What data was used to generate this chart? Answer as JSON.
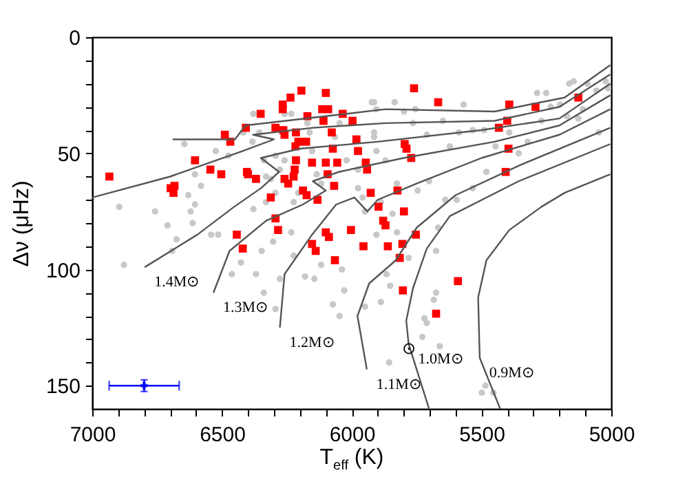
{
  "chart_data": {
    "type": "scatter",
    "xlabel": "T$_{eff}$ (K)",
    "ylabel": "Δν (μHz)",
    "xlim": [
      7000,
      5000
    ],
    "ylim": [
      160,
      0
    ],
    "xticks": [
      7000,
      {
        "value": 6900,
        "label": null
      },
      {
        "value": 6800,
        "label": null
      },
      {
        "value": 6700,
        "label": null
      },
      {
        "value": 6600,
        "label": null
      },
      6500,
      {
        "value": 6400,
        "label": null
      },
      {
        "value": 6300,
        "label": null
      },
      {
        "value": 6200,
        "label": null
      },
      {
        "value": 6100,
        "label": null
      },
      6000,
      {
        "value": 5900,
        "label": null
      },
      {
        "value": 5800,
        "label": null
      },
      {
        "value": 5700,
        "label": null
      },
      {
        "value": 5600,
        "label": null
      },
      5500,
      {
        "value": 5400,
        "label": null
      },
      {
        "value": 5300,
        "label": null
      },
      {
        "value": 5200,
        "label": null
      },
      {
        "value": 5100,
        "label": null
      },
      5000
    ],
    "yticks": [
      0,
      {
        "value": 10,
        "label": null
      },
      {
        "value": 20,
        "label": null
      },
      {
        "value": 30,
        "label": null
      },
      {
        "value": 40,
        "label": null
      },
      50,
      {
        "value": 60,
        "label": null
      },
      {
        "value": 70,
        "label": null
      },
      {
        "value": 80,
        "label": null
      },
      {
        "value": 90,
        "label": null
      },
      100,
      {
        "value": 110,
        "label": null
      },
      {
        "value": 120,
        "label": null
      },
      {
        "value": 130,
        "label": null
      },
      {
        "value": 140,
        "label": null
      },
      150
    ],
    "series": [
      {
        "type": "scatter",
        "color": "#c8c8c8",
        "marker": "circle",
        "x": [
          6896,
          6758,
          6645,
          6604,
          6581,
          6630,
          6604,
          6524,
          6475,
          6418,
          6383,
          6379,
          6356,
          6339,
          6330,
          6312,
          6294,
          6379,
          6330,
          6259,
          6233,
          6171,
          6162,
          6153,
          6135,
          6118,
          6065,
          6047,
          6020,
          5976,
          5923,
          5905,
          5914,
          5958,
          5976,
          5888,
          6224,
          6206,
          6259,
          6294,
          6277,
          5914,
          5835,
          5799,
          5755,
          5649,
          5587,
          5534,
          5490,
          5393,
          5322,
          5357,
          5481,
          5534,
          5596,
          5640,
          5702,
          5746,
          5826,
          5870,
          5905,
          5286,
          5251,
          5233,
          5198,
          5162,
          5145,
          5092,
          5057,
          5021,
          5012,
          5048,
          5110,
          5127,
          5171,
          5269,
          5569,
          5711,
          5622,
          5446,
          5764,
          5914,
          6878,
          6710,
          6675,
          6692,
          6613,
          6621,
          6542,
          6515,
          6427,
          6462,
          6369,
          6339,
          6294,
          6277,
          6224,
          6180,
          6144,
          6118,
          6038,
          6029,
          6073,
          6047,
          6303,
          6233,
          6347,
          5949,
          5843,
          5905,
          5826,
          5667,
          5675,
          5781,
          5866,
          5852,
          5888,
          5949,
          5675,
          5684,
          5720,
          5711,
          5728,
          5661,
          5856,
          5499,
          5485,
          5454
        ],
        "values": [
          73,
          75,
          46,
          59,
          64,
          68,
          72,
          49,
          51,
          41,
          45,
          33,
          41,
          53,
          60,
          61,
          67,
          74,
          71,
          33,
          33,
          37,
          41,
          49,
          59,
          63,
          43,
          37,
          53,
          57,
          28,
          31,
          43,
          69,
          65,
          71,
          71,
          67,
          53,
          51,
          57,
          28,
          28,
          32,
          31,
          36,
          41,
          40,
          40,
          41,
          45,
          50,
          58,
          65,
          70,
          70,
          62,
          66,
          63,
          53,
          49,
          24,
          24,
          30,
          29,
          20,
          19,
          20,
          23,
          19,
          22,
          41,
          31,
          35,
          34,
          36,
          29,
          42,
          47,
          47,
          37,
          41,
          98,
          81,
          87,
          92,
          80,
          75,
          85,
          85,
          97,
          102,
          102,
          110,
          117,
          104,
          94,
          103,
          104,
          98,
          100,
          109,
          115,
          120,
          88,
          84,
          92,
          75,
          76,
          85,
          84,
          82,
          92,
          95,
          102,
          107,
          114,
          116,
          110,
          113,
          121,
          123,
          129,
          133,
          140,
          153,
          150,
          153
        ]
      },
      {
        "type": "scatter",
        "color": "#ff0000",
        "marker": "square",
        "x": [
          6934,
          6698,
          6683,
          6687,
          6604,
          6545,
          6503,
          6489,
          6468,
          6408,
          6404,
          6400,
          6369,
          6351,
          6312,
          6294,
          6264,
          6259,
          6266,
          6266,
          6236,
          6224,
          6220,
          6215,
          6217,
          6206,
          6215,
          6259,
          6245,
          6194,
          6188,
          6174,
          6176,
          6171,
          6132,
          6153,
          6114,
          6091,
          6109,
          6100,
          6100,
          6093,
          6077,
          6073,
          6068,
          6056,
          6035,
          5997,
          5982,
          5976,
          5946,
          5941,
          5927,
          5897,
          5760,
          5667,
          5393,
          5292,
          5127,
          5401,
          5433,
          5796,
          5789,
          5771,
          5396,
          5407,
          5824,
          5799,
          6443,
          6420,
          6294,
          6284,
          6153,
          6139,
          6100,
          6088,
          6065,
          6003,
          5955,
          5879,
          5870,
          5753,
          5861,
          5805,
          5815,
          5803,
          5591,
          5675
        ],
        "values": [
          60,
          65,
          64,
          67,
          53,
          57,
          59,
          42,
          45,
          39,
          58,
          59,
          61,
          33,
          69,
          39,
          40,
          42,
          31,
          29,
          26,
          60,
          57,
          41,
          47,
          45,
          53,
          61,
          63,
          23,
          66,
          68,
          45,
          34,
          70,
          54,
          31,
          31,
          36,
          24,
          54,
          59,
          41,
          48,
          64,
          54,
          33,
          36,
          44,
          49,
          54,
          57,
          67,
          73,
          22,
          28,
          29,
          30,
          26,
          36,
          39,
          46,
          48,
          52,
          48,
          58,
          66,
          75,
          85,
          91,
          78,
          83,
          89,
          92,
          84,
          86,
          96,
          83,
          90,
          79,
          81,
          85,
          90,
          89,
          95,
          109,
          105,
          119
        ]
      },
      {
        "type": "line",
        "color": "#555555",
        "x": [
          6690,
          6450,
          6410,
          6100,
          5870,
          5450,
          5180,
          5004
        ],
        "values": [
          44,
          44,
          38,
          34,
          31,
          32,
          26,
          12
        ]
      },
      {
        "type": "line",
        "color": "#555555",
        "x": [
          7000,
          6700,
          6420,
          6300,
          6380,
          6150,
          5870,
          5450,
          5200,
          5004
        ],
        "values": [
          69,
          60,
          49,
          44,
          42,
          39,
          37,
          36,
          30,
          16
        ]
      },
      {
        "type": "line",
        "color": "#555555",
        "name": "1.4M⊙",
        "x": [
          6798,
          6595,
          6453,
          6350,
          6280,
          6350,
          6200,
          5900,
          5500,
          5200,
          5004
        ],
        "values": [
          99,
          85,
          73,
          65,
          58,
          52,
          48,
          45,
          40,
          35,
          20
        ]
      },
      {
        "type": "line",
        "color": "#555555",
        "name": "1.3M⊙",
        "x": [
          6533,
          6471,
          6330,
          6188,
          6100,
          6150,
          6050,
          5800,
          5450,
          5200,
          5004
        ],
        "values": [
          110,
          92,
          79,
          72,
          66,
          62,
          58,
          52,
          45,
          38,
          25
        ]
      },
      {
        "type": "line",
        "color": "#555555",
        "name": "1.2M⊙",
        "x": [
          6277,
          6259,
          6153,
          6060,
          5990,
          5940,
          5900,
          5750,
          5500,
          5200,
          5004
        ],
        "values": [
          125,
          102,
          85,
          72,
          69,
          75,
          70,
          63,
          52,
          42,
          31
        ]
      },
      {
        "type": "line",
        "color": "#555555",
        "name": "1.1M⊙",
        "x": [
          5942,
          5978,
          5933,
          5830,
          5750,
          5600,
          5350,
          5004
        ],
        "values": [
          143,
          120,
          106,
          96,
          82,
          68,
          55,
          39
        ]
      },
      {
        "type": "line",
        "color": "#555555",
        "name": "1.0M⊙",
        "x": [
          5702,
          5781,
          5790,
          5764,
          5711,
          5622,
          5357,
          5004
        ],
        "values": [
          160,
          132,
          122,
          108,
          91,
          77,
          62,
          46
        ]
      },
      {
        "type": "line",
        "color": "#555555",
        "name": "0.9M⊙",
        "x": [
          5428,
          5507,
          5513,
          5481,
          5393,
          5269,
          5180,
          5004
        ],
        "values": [
          160,
          138,
          112,
          96,
          83,
          73,
          67,
          59
        ]
      },
      {
        "type": "scatter",
        "color": "#0000ff",
        "marker": "cross",
        "x": [
          6800
        ],
        "values": [
          150
        ],
        "errors": [
          2.5
        ],
        "xerrors": [
          135
        ]
      }
    ],
    "annotations": [
      {
        "text": "⊙",
        "x": 5780,
        "y": 134
      }
    ]
  }
}
